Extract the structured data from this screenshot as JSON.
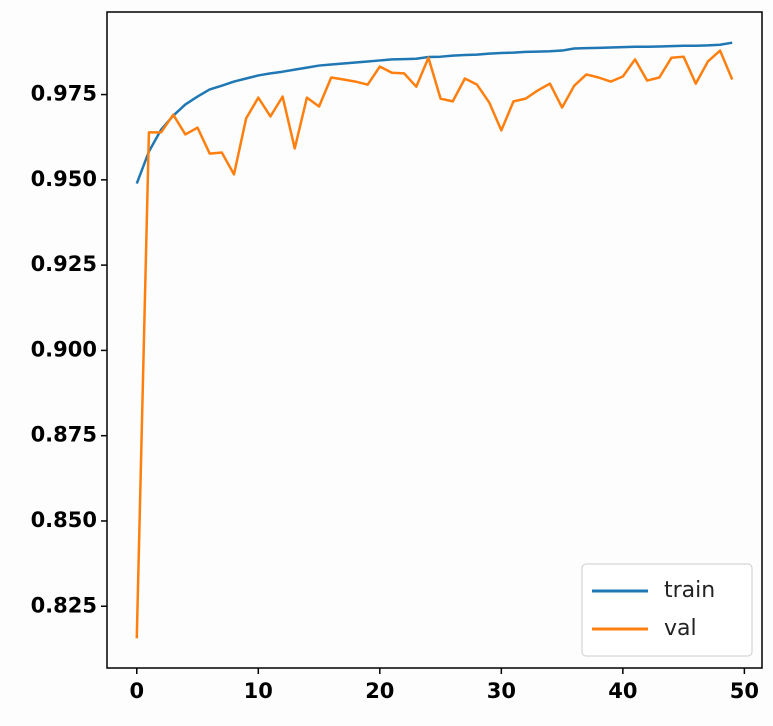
{
  "chart_data": {
    "type": "line",
    "x": [
      0,
      1,
      2,
      3,
      4,
      5,
      6,
      7,
      8,
      9,
      10,
      11,
      12,
      13,
      14,
      15,
      16,
      17,
      18,
      19,
      20,
      21,
      22,
      23,
      24,
      25,
      26,
      27,
      28,
      29,
      30,
      31,
      32,
      33,
      34,
      35,
      36,
      37,
      38,
      39,
      40,
      41,
      42,
      43,
      44,
      45,
      46,
      47,
      48,
      49
    ],
    "series": [
      {
        "name": "train",
        "color": "#1f77b4",
        "values": [
          0.9489,
          0.9583,
          0.9647,
          0.9688,
          0.9721,
          0.9744,
          0.9765,
          0.9776,
          0.9788,
          0.9797,
          0.9806,
          0.9812,
          0.9817,
          0.9823,
          0.9829,
          0.9835,
          0.9838,
          0.9841,
          0.9844,
          0.9847,
          0.985,
          0.9853,
          0.9854,
          0.9855,
          0.986,
          0.9861,
          0.9864,
          0.9866,
          0.9867,
          0.987,
          0.9872,
          0.9873,
          0.9875,
          0.9876,
          0.9877,
          0.9879,
          0.9885,
          0.9886,
          0.9887,
          0.9888,
          0.9889,
          0.989,
          0.989,
          0.9891,
          0.9892,
          0.9893,
          0.9893,
          0.9894,
          0.9896,
          0.9902
        ]
      },
      {
        "name": "val",
        "color": "#ff7f0e",
        "values": [
          0.8156,
          0.9639,
          0.9639,
          0.9691,
          0.9633,
          0.9653,
          0.9577,
          0.958,
          0.9516,
          0.968,
          0.9741,
          0.9686,
          0.9744,
          0.9592,
          0.9741,
          0.9715,
          0.98,
          0.9794,
          0.9788,
          0.9779,
          0.9832,
          0.9814,
          0.9812,
          0.9773,
          0.9858,
          0.9738,
          0.973,
          0.9797,
          0.9779,
          0.9727,
          0.9645,
          0.973,
          0.9738,
          0.9762,
          0.9782,
          0.9712,
          0.9776,
          0.9809,
          0.98,
          0.9788,
          0.9803,
          0.9853,
          0.9791,
          0.98,
          0.9858,
          0.9861,
          0.9782,
          0.9847,
          0.9879,
          0.9794
        ]
      }
    ],
    "xlim": [
      -2.45,
      51.45
    ],
    "ylim": [
      0.8069,
      0.9992
    ],
    "xticks": [
      0,
      10,
      20,
      30,
      40,
      50
    ],
    "yticks": [
      0.825,
      {
        "value": 0.85,
        "label": "0.850"
      },
      0.875,
      {
        "value": 0.9,
        "label": "0.900"
      },
      0.925,
      {
        "value": 0.95,
        "label": "0.950"
      },
      0.975
    ],
    "legend": "lower right"
  }
}
